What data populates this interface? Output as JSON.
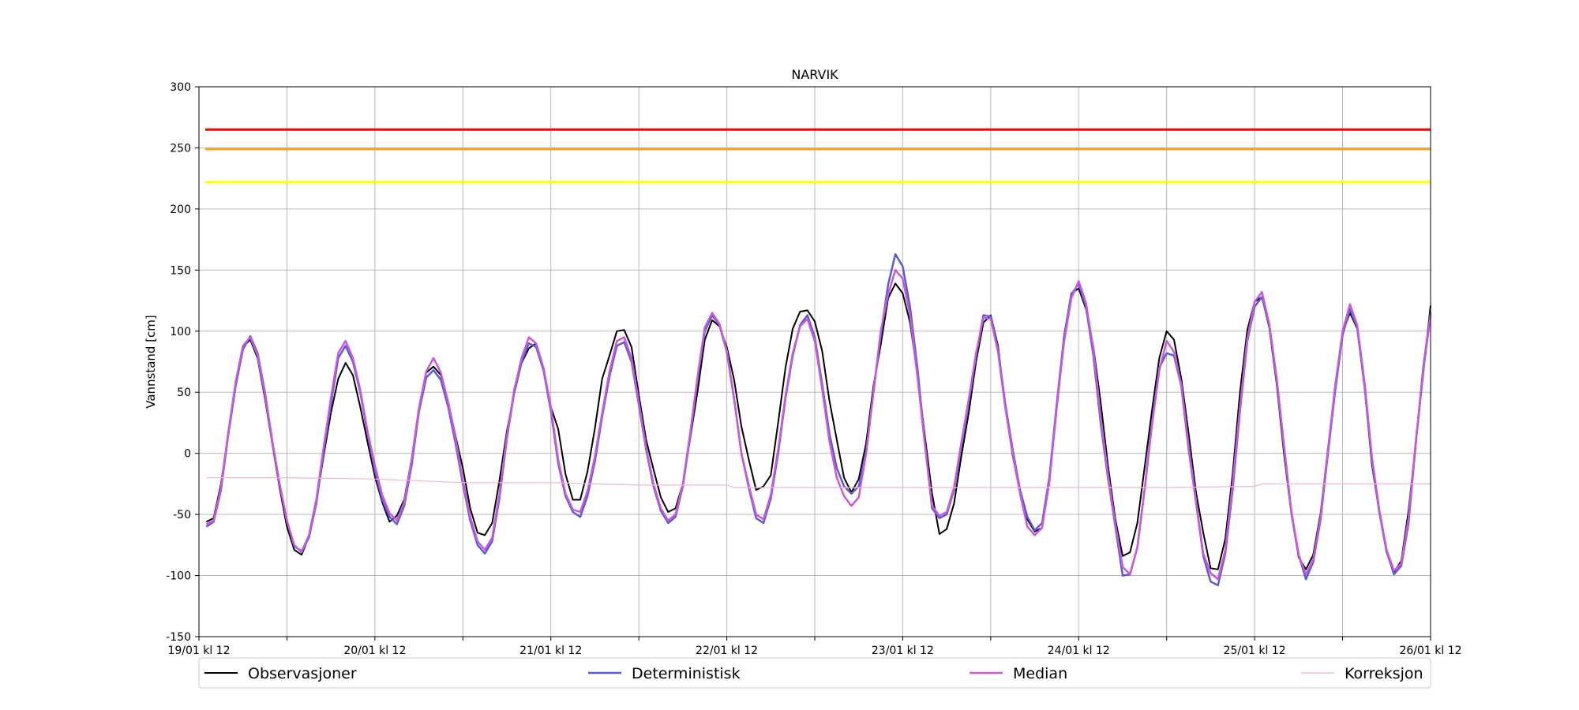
{
  "chart_data": {
    "type": "line",
    "title": "NARVIK",
    "xlabel": "",
    "ylabel": "Vannstand [cm]",
    "ylim": [
      -150,
      300
    ],
    "yticks": [
      -150,
      -100,
      -50,
      0,
      50,
      100,
      150,
      200,
      250,
      300
    ],
    "x_range_hours": [
      0,
      168
    ],
    "xtick_labels": [
      "19/01 kl 12",
      "20/01 kl 12",
      "21/01 kl 12",
      "22/01 kl 12",
      "23/01 kl 12",
      "24/01 kl 12",
      "25/01 kl 12",
      "26/01 kl 12"
    ],
    "grid": true,
    "legend_position": "bottom",
    "thresholds": [
      {
        "value": 265,
        "color": "#ff0000"
      },
      {
        "value": 249,
        "color": "#f5a623"
      },
      {
        "value": 222,
        "color": "#ffff00"
      }
    ],
    "series": [
      {
        "name": "Observasjoner",
        "color": "#000000",
        "width": 2,
        "x": [
          1,
          2,
          3,
          4,
          5,
          6,
          7,
          8,
          9,
          10,
          11,
          12,
          13,
          14,
          15,
          16,
          17,
          18,
          19,
          20,
          21,
          22,
          23,
          24,
          25,
          26,
          27,
          28,
          29,
          30,
          31,
          32,
          33,
          34,
          35,
          36,
          37,
          38,
          39,
          40,
          41,
          42,
          43,
          44,
          45,
          46,
          47,
          48,
          49,
          50,
          51,
          52,
          53,
          54,
          55,
          56,
          57,
          58,
          59,
          60,
          61,
          62,
          63,
          64,
          65,
          66,
          67,
          68,
          69,
          70,
          71,
          72,
          73,
          74,
          75,
          76,
          77,
          78,
          79,
          80,
          81,
          82,
          83,
          84,
          85,
          86,
          87,
          88,
          89,
          90,
          91,
          92,
          93,
          94,
          95,
          96,
          97,
          98,
          99,
          100,
          101,
          102,
          103,
          104,
          105,
          106,
          107,
          108,
          109,
          110,
          111,
          112,
          113,
          114,
          115,
          116,
          117,
          118,
          119,
          120,
          121,
          122,
          123,
          124,
          125,
          126,
          127,
          128,
          129,
          130,
          131,
          132,
          133,
          134,
          135,
          136,
          137,
          138,
          139,
          140,
          141,
          142,
          143,
          144,
          145,
          146,
          147,
          148,
          149,
          150,
          151,
          152,
          153,
          154,
          155,
          156,
          157,
          158,
          159,
          160,
          161,
          162,
          163,
          164,
          165,
          166,
          167,
          168
        ],
        "y": [
          -56,
          -53,
          -25,
          15,
          55,
          87,
          93,
          78,
          45,
          8,
          -28,
          -60,
          -79,
          -83,
          -68,
          -40,
          -2,
          33,
          61,
          74,
          64,
          38,
          9,
          -19,
          -40,
          -56,
          -51,
          -38,
          -5,
          37,
          66,
          71,
          64,
          42,
          14,
          -12,
          -45,
          -65,
          -67,
          -57,
          -22,
          18,
          49,
          74,
          86,
          90,
          68,
          38,
          20,
          -17,
          -38,
          -38,
          -15,
          20,
          61,
          80,
          100,
          101,
          87,
          48,
          11,
          -13,
          -36,
          -48,
          -45,
          -25,
          12,
          50,
          93,
          109,
          104,
          87,
          60,
          22,
          -5,
          -30,
          -27,
          -18,
          25,
          70,
          102,
          116,
          117,
          108,
          84,
          43,
          11,
          -20,
          -32,
          -21,
          8,
          55,
          89,
          127,
          139,
          131,
          107,
          65,
          15,
          -33,
          -66,
          -62,
          -41,
          -2,
          33,
          75,
          107,
          113,
          88,
          38,
          -2,
          -32,
          -54,
          -64,
          -61,
          -23,
          36,
          96,
          131,
          135,
          118,
          87,
          42,
          -10,
          -54,
          -84,
          -81,
          -57,
          -11,
          35,
          78,
          100,
          93,
          61,
          16,
          -32,
          -65,
          -94,
          -95,
          -70,
          -17,
          50,
          101,
          124,
          128,
          103,
          57,
          0,
          -49,
          -85,
          -95,
          -83,
          -49,
          4,
          52,
          99,
          115,
          102,
          54,
          -9,
          -48,
          -81,
          -97,
          -88,
          -47,
          9,
          65,
          121
        ]
      },
      {
        "name": "Deterministisk",
        "color": "#5b5bd6",
        "width": 2.5,
        "x": [
          1,
          2,
          3,
          4,
          5,
          6,
          7,
          8,
          9,
          10,
          11,
          12,
          13,
          14,
          15,
          16,
          17,
          18,
          19,
          20,
          21,
          22,
          23,
          24,
          25,
          26,
          27,
          28,
          29,
          30,
          31,
          32,
          33,
          34,
          35,
          36,
          37,
          38,
          39,
          40,
          41,
          42,
          43,
          44,
          45,
          46,
          47,
          48,
          49,
          50,
          51,
          52,
          53,
          54,
          55,
          56,
          57,
          58,
          59,
          60,
          61,
          62,
          63,
          64,
          65,
          66,
          67,
          68,
          69,
          70,
          71,
          72,
          73,
          74,
          75,
          76,
          77,
          78,
          79,
          80,
          81,
          82,
          83,
          84,
          85,
          86,
          87,
          88,
          89,
          90,
          91,
          92,
          93,
          94,
          95,
          96,
          97,
          98,
          99,
          100,
          101,
          102,
          103,
          104,
          105,
          106,
          107,
          108,
          109,
          110,
          111,
          112,
          113,
          114,
          115,
          116,
          117,
          118,
          119,
          120,
          121,
          122,
          123,
          124,
          125,
          126,
          127,
          128,
          129,
          130,
          131,
          132,
          133,
          134,
          135,
          136,
          137,
          138,
          139,
          140,
          141,
          142,
          143,
          144,
          145,
          146,
          147,
          148,
          149,
          150,
          151,
          152,
          153,
          154,
          155,
          156,
          157,
          158,
          159,
          160,
          161,
          162,
          163,
          164,
          165,
          166,
          167,
          168
        ],
        "y": [
          -60,
          -56,
          -30,
          15,
          55,
          85,
          96,
          82,
          50,
          10,
          -25,
          -55,
          -76,
          -80,
          -69,
          -41,
          2,
          40,
          78,
          88,
          75,
          50,
          16,
          -14,
          -38,
          -52,
          -58,
          -43,
          -10,
          34,
          62,
          68,
          60,
          38,
          8,
          -25,
          -55,
          -75,
          -82,
          -72,
          -36,
          12,
          50,
          75,
          90,
          87,
          68,
          35,
          -8,
          -35,
          -48,
          -52,
          -35,
          -7,
          30,
          63,
          88,
          91,
          75,
          40,
          3,
          -27,
          -47,
          -57,
          -52,
          -27,
          14,
          60,
          100,
          113,
          105,
          83,
          44,
          0,
          -28,
          -53,
          -57,
          -37,
          0,
          45,
          80,
          105,
          113,
          95,
          57,
          16,
          -12,
          -27,
          -33,
          -27,
          0,
          50,
          97,
          138,
          163,
          153,
          120,
          70,
          10,
          -45,
          -53,
          -50,
          -30,
          7,
          42,
          80,
          113,
          112,
          85,
          40,
          3,
          -30,
          -52,
          -63,
          -57,
          -20,
          40,
          95,
          130,
          139,
          120,
          80,
          25,
          -20,
          -60,
          -100,
          -99,
          -77,
          -29,
          25,
          70,
          82,
          80,
          55,
          3,
          -40,
          -84,
          -105,
          -108,
          -82,
          -30,
          35,
          92,
          120,
          128,
          105,
          60,
          5,
          -48,
          -83,
          -103,
          -89,
          -54,
          0,
          52,
          97,
          118,
          103,
          55,
          -5,
          -48,
          -80,
          -99,
          -92,
          -57,
          9,
          70,
          115
        ]
      },
      {
        "name": "Median",
        "color": "#c85ad8",
        "width": 2.5,
        "x": [
          1,
          2,
          3,
          4,
          5,
          6,
          7,
          8,
          9,
          10,
          11,
          12,
          13,
          14,
          15,
          16,
          17,
          18,
          19,
          20,
          21,
          22,
          23,
          24,
          25,
          26,
          27,
          28,
          29,
          30,
          31,
          32,
          33,
          34,
          35,
          36,
          37,
          38,
          39,
          40,
          41,
          42,
          43,
          44,
          45,
          46,
          47,
          48,
          49,
          50,
          51,
          52,
          53,
          54,
          55,
          56,
          57,
          58,
          59,
          60,
          61,
          62,
          63,
          64,
          65,
          66,
          67,
          68,
          69,
          70,
          71,
          72,
          73,
          74,
          75,
          76,
          77,
          78,
          79,
          80,
          81,
          82,
          83,
          84,
          85,
          86,
          87,
          88,
          89,
          90,
          91,
          92,
          93,
          94,
          95,
          96,
          97,
          98,
          99,
          100,
          101,
          102,
          103,
          104,
          105,
          106,
          107,
          108,
          109,
          110,
          111,
          112,
          113,
          114,
          115,
          116,
          117,
          118,
          119,
          120,
          121,
          122,
          123,
          124,
          125,
          126,
          127,
          128,
          129,
          130,
          131,
          132,
          133,
          134,
          135,
          136,
          137,
          138,
          139,
          140,
          141,
          142,
          143,
          144,
          145,
          146,
          147,
          148,
          149,
          150,
          151,
          152,
          153,
          154,
          155,
          156,
          157,
          158,
          159,
          160,
          161,
          162,
          163,
          164,
          165,
          166,
          167,
          168
        ],
        "y": [
          -58,
          -55,
          -28,
          17,
          58,
          88,
          95,
          80,
          48,
          10,
          -25,
          -55,
          -75,
          -81,
          -67,
          -38,
          5,
          45,
          82,
          92,
          78,
          52,
          18,
          -10,
          -34,
          -49,
          -55,
          -40,
          -6,
          37,
          67,
          78,
          66,
          42,
          12,
          -22,
          -52,
          -72,
          -79,
          -69,
          -33,
          14,
          52,
          78,
          95,
          90,
          70,
          38,
          -5,
          -33,
          -46,
          -48,
          -31,
          -3,
          33,
          67,
          92,
          95,
          78,
          42,
          5,
          -25,
          -45,
          -55,
          -50,
          -25,
          16,
          62,
          103,
          115,
          106,
          84,
          45,
          0,
          -26,
          -50,
          -54,
          -34,
          3,
          47,
          82,
          104,
          110,
          92,
          53,
          10,
          -20,
          -35,
          -43,
          -36,
          0,
          50,
          100,
          130,
          150,
          143,
          113,
          63,
          8,
          -43,
          -51,
          -48,
          -28,
          9,
          44,
          82,
          111,
          110,
          83,
          37,
          0,
          -33,
          -60,
          -67,
          -61,
          -24,
          37,
          91,
          127,
          141,
          123,
          85,
          30,
          -17,
          -58,
          -93,
          -99,
          -77,
          -29,
          23,
          68,
          92,
          83,
          56,
          6,
          -39,
          -82,
          -98,
          -103,
          -79,
          -25,
          38,
          94,
          124,
          132,
          106,
          62,
          7,
          -47,
          -83,
          -99,
          -87,
          -52,
          3,
          56,
          100,
          122,
          105,
          58,
          -3,
          -46,
          -79,
          -96,
          -90,
          -53,
          11,
          67,
          113
        ]
      },
      {
        "name": "Korreksjon",
        "color": "#f2b8cb",
        "width": 1.2,
        "x": [
          1,
          12,
          24,
          36,
          48,
          60,
          72,
          73,
          84,
          96,
          108,
          120,
          132,
          144,
          145,
          156,
          168
        ],
        "y": [
          -20,
          -20,
          -21,
          -24,
          -24,
          -26,
          -26,
          -28,
          -28,
          -28,
          -28,
          -28,
          -28,
          -27,
          -25,
          -25,
          -25
        ]
      }
    ]
  }
}
